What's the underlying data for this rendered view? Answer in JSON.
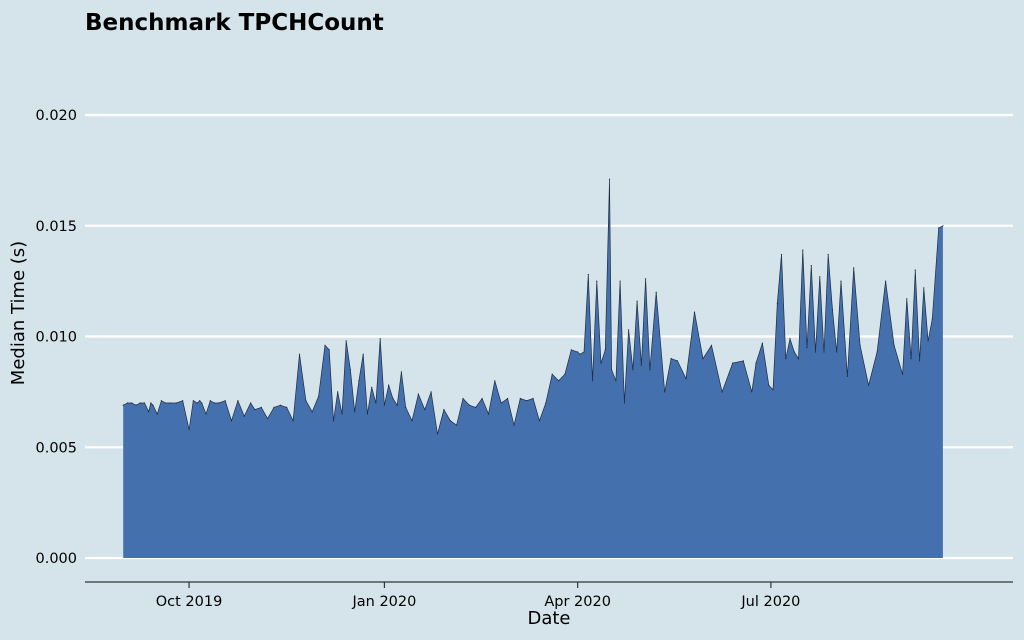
{
  "chart_data": {
    "type": "area",
    "title": "Benchmark TPCHCount",
    "xlabel": "Date",
    "ylabel": "Median Time (s)",
    "x_ticks": [
      "Oct 2019",
      "Jan 2020",
      "Apr 2020",
      "Jul 2020"
    ],
    "y_ticks": [
      "0.000",
      "0.005",
      "0.010",
      "0.015",
      "0.020"
    ],
    "ylim": [
      0,
      0.021
    ],
    "xlim": [
      "2019-08-13",
      "2020-10-23"
    ],
    "grid": "horizontal",
    "colors": {
      "background": "#d5e4eb",
      "fill": "#4471ae",
      "outline": "#1f2d40",
      "grid": "#ffffff"
    },
    "series": [
      {
        "x": [
          "2019-08-31",
          "2019-09-02",
          "2019-09-04",
          "2019-09-06",
          "2019-09-08",
          "2019-09-10",
          "2019-09-12",
          "2019-09-13",
          "2019-09-14",
          "2019-09-16",
          "2019-09-18",
          "2019-09-20",
          "2019-09-22",
          "2019-09-25",
          "2019-09-28",
          "2019-10-01",
          "2019-10-03",
          "2019-10-05",
          "2019-10-06",
          "2019-10-07",
          "2019-10-09",
          "2019-10-11",
          "2019-10-13",
          "2019-10-15",
          "2019-10-18",
          "2019-10-21",
          "2019-10-24",
          "2019-10-27",
          "2019-10-30",
          "2019-11-01",
          "2019-11-04",
          "2019-11-07",
          "2019-11-10",
          "2019-11-13",
          "2019-11-16",
          "2019-11-19",
          "2019-11-22",
          "2019-11-25",
          "2019-11-28",
          "2019-12-01",
          "2019-12-04",
          "2019-12-06",
          "2019-12-08",
          "2019-12-10",
          "2019-12-12",
          "2019-12-14",
          "2019-12-16",
          "2019-12-18",
          "2019-12-20",
          "2019-12-22",
          "2019-12-24",
          "2019-12-26",
          "2019-12-28",
          "2019-12-30",
          "2020-01-01",
          "2020-01-03",
          "2020-01-05",
          "2020-01-07",
          "2020-01-09",
          "2020-01-11",
          "2020-01-14",
          "2020-01-17",
          "2020-01-20",
          "2020-01-23",
          "2020-01-26",
          "2020-01-29",
          "2020-02-01",
          "2020-02-04",
          "2020-02-07",
          "2020-02-10",
          "2020-02-13",
          "2020-02-16",
          "2020-02-19",
          "2020-02-22",
          "2020-02-25",
          "2020-02-28",
          "2020-03-02",
          "2020-03-05",
          "2020-03-08",
          "2020-03-11",
          "2020-03-14",
          "2020-03-17",
          "2020-03-20",
          "2020-03-23",
          "2020-03-26",
          "2020-03-29",
          "2020-04-01",
          "2020-04-02",
          "2020-04-04",
          "2020-04-06",
          "2020-04-08",
          "2020-04-10",
          "2020-04-12",
          "2020-04-14",
          "2020-04-16",
          "2020-04-17",
          "2020-04-19",
          "2020-04-21",
          "2020-04-23",
          "2020-04-25",
          "2020-04-27",
          "2020-04-29",
          "2020-05-01",
          "2020-05-03",
          "2020-05-05",
          "2020-05-08",
          "2020-05-12",
          "2020-05-15",
          "2020-05-18",
          "2020-05-22",
          "2020-05-26",
          "2020-05-30",
          "2020-06-03",
          "2020-06-08",
          "2020-06-13",
          "2020-06-18",
          "2020-06-22",
          "2020-06-24",
          "2020-06-27",
          "2020-06-30",
          "2020-07-02",
          "2020-07-04",
          "2020-07-06",
          "2020-07-08",
          "2020-07-10",
          "2020-07-12",
          "2020-07-14",
          "2020-07-16",
          "2020-07-18",
          "2020-07-20",
          "2020-07-22",
          "2020-07-24",
          "2020-07-26",
          "2020-07-28",
          "2020-07-30",
          "2020-08-01",
          "2020-08-03",
          "2020-08-06",
          "2020-08-09",
          "2020-08-12",
          "2020-08-16",
          "2020-08-20",
          "2020-08-24",
          "2020-08-28",
          "2020-09-01",
          "2020-09-03",
          "2020-09-05",
          "2020-09-07",
          "2020-09-09",
          "2020-09-11",
          "2020-09-13",
          "2020-09-15",
          "2020-09-18",
          "2020-09-20"
        ],
        "values": [
          0.0069,
          0.007,
          0.007,
          0.0069,
          0.007,
          0.007,
          0.0066,
          0.007,
          0.0069,
          0.0065,
          0.0071,
          0.007,
          0.007,
          0.007,
          0.0071,
          0.0058,
          0.0071,
          0.007,
          0.0071,
          0.007,
          0.0065,
          0.0071,
          0.007,
          0.007,
          0.0071,
          0.0062,
          0.0071,
          0.0064,
          0.007,
          0.0067,
          0.0068,
          0.0063,
          0.0068,
          0.0069,
          0.0068,
          0.0062,
          0.0092,
          0.0071,
          0.0066,
          0.0073,
          0.0096,
          0.0094,
          0.0062,
          0.0075,
          0.0065,
          0.0098,
          0.0085,
          0.0066,
          0.008,
          0.0092,
          0.0065,
          0.0077,
          0.007,
          0.0099,
          0.0069,
          0.0078,
          0.0072,
          0.0069,
          0.0084,
          0.0068,
          0.0062,
          0.0074,
          0.0067,
          0.0075,
          0.0056,
          0.0067,
          0.0062,
          0.006,
          0.0072,
          0.0069,
          0.0068,
          0.0072,
          0.0065,
          0.008,
          0.007,
          0.0072,
          0.006,
          0.0072,
          0.0071,
          0.0072,
          0.0062,
          0.007,
          0.0083,
          0.008,
          0.0083,
          0.0094,
          0.0093,
          0.0092,
          0.0093,
          0.0128,
          0.008,
          0.0125,
          0.0088,
          0.0094,
          0.0171,
          0.0085,
          0.008,
          0.0125,
          0.007,
          0.0103,
          0.0085,
          0.0116,
          0.0087,
          0.0126,
          0.0085,
          0.012,
          0.0075,
          0.009,
          0.0089,
          0.0081,
          0.0111,
          0.009,
          0.0096,
          0.0075,
          0.0088,
          0.0089,
          0.0075,
          0.0088,
          0.0097,
          0.0078,
          0.0076,
          0.0115,
          0.0137,
          0.009,
          0.0099,
          0.0093,
          0.009,
          0.0139,
          0.0095,
          0.0132,
          0.0093,
          0.0127,
          0.0093,
          0.0137,
          0.0112,
          0.0093,
          0.0125,
          0.0082,
          0.0131,
          0.0096,
          0.0078,
          0.0093,
          0.0125,
          0.0096,
          0.0083,
          0.0117,
          0.009,
          0.013,
          0.0089,
          0.0122,
          0.0098,
          0.0108,
          0.0149,
          0.015
        ]
      }
    ]
  }
}
